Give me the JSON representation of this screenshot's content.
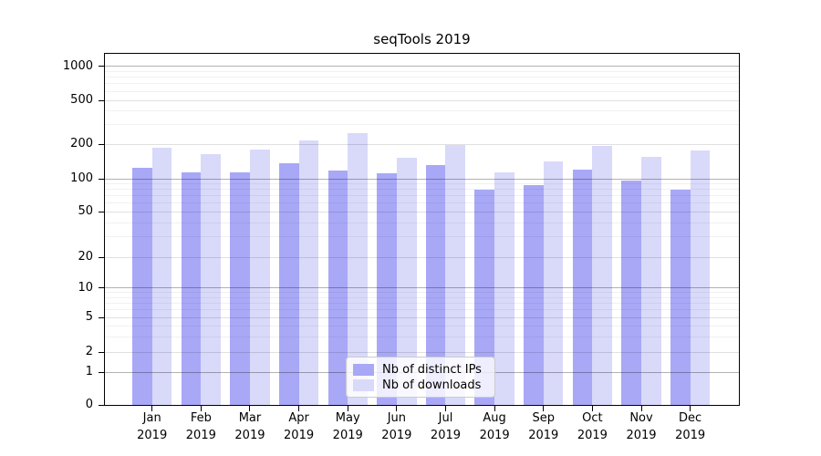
{
  "title": "seqTools 2019",
  "chart_data": {
    "type": "bar",
    "categories": [
      "Jan",
      "Feb",
      "Mar",
      "Apr",
      "May",
      "Jun",
      "Jul",
      "Aug",
      "Sep",
      "Oct",
      "Nov",
      "Dec"
    ],
    "year": "2019",
    "series": [
      {
        "name": "Nb of distinct IPs",
        "color": "#a8a8f7",
        "values": [
          125,
          114,
          115,
          138,
          119,
          112,
          132,
          80,
          87,
          121,
          96,
          80
        ]
      },
      {
        "name": "Nb of downloads",
        "color": "#d9d9fa",
        "values": [
          187,
          165,
          180,
          218,
          253,
          152,
          198,
          114,
          143,
          195,
          157,
          178
        ]
      }
    ],
    "yscale": "symlog",
    "yticks": [
      0,
      1,
      2,
      5,
      10,
      20,
      50,
      100,
      200,
      500,
      1000
    ],
    "ylim": [
      0,
      1300
    ],
    "grid": true,
    "legend": {
      "labels": [
        "Nb of distinct IPs",
        "Nb of downloads"
      ],
      "position": "lower center"
    }
  },
  "colors": {
    "axis": "#000000",
    "grid_major": "rgba(0,0,0,0.30)",
    "grid_mid": "rgba(0,0,0,0.12)",
    "grid_minor": "rgba(0,0,0,0.055)"
  }
}
